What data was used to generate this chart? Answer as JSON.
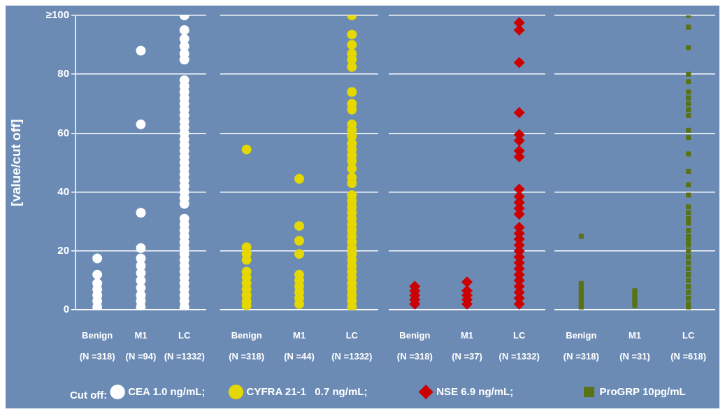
{
  "chart_data": [
    {
      "type": "scatter",
      "ylabel": "[value/cut off]",
      "legend_title": "Cut off:",
      "categories": [
        "Benign\n(N =318)",
        "M1\n(N =94)",
        "LC\n(N =1332)"
      ],
      "ylim": [
        0,
        100
      ],
      "yticks": [
        0,
        20,
        40,
        60,
        80,
        {
          "value": 100,
          "label": "≥100"
        }
      ],
      "grid": "y",
      "legend": "bottom",
      "series": [
        {
          "name": "CEA 1.0 ng/mL;",
          "color": "#ffffff",
          "marker": "circle",
          "x": [
            "Benign\n(N =318)",
            "Benign\n(N =318)",
            "Benign\n(N =318)",
            "Benign\n(N =318)",
            "Benign\n(N =318)",
            "Benign\n(N =318)",
            "Benign\n(N =318)",
            "M1\n(N =94)",
            "M1\n(N =94)",
            "M1\n(N =94)",
            "M1\n(N =94)",
            "M1\n(N =94)",
            "M1\n(N =94)",
            "M1\n(N =94)",
            "M1\n(N =94)",
            "M1\n(N =94)",
            "M1\n(N =94)",
            "M1\n(N =94)",
            "M1\n(N =94)",
            "LC\n(N =1332)",
            "LC\n(N =1332)",
            "LC\n(N =1332)",
            "LC\n(N =1332)",
            "LC\n(N =1332)",
            "LC\n(N =1332)",
            "LC\n(N =1332)",
            "LC\n(N =1332)",
            "LC\n(N =1332)",
            "LC\n(N =1332)",
            "LC\n(N =1332)",
            "LC\n(N =1332)",
            "LC\n(N =1332)",
            "LC\n(N =1332)",
            "LC\n(N =1332)",
            "LC\n(N =1332)",
            "LC\n(N =1332)",
            "LC\n(N =1332)",
            "LC\n(N =1332)",
            "LC\n(N =1332)",
            "LC\n(N =1332)",
            "LC\n(N =1332)",
            "LC\n(N =1332)",
            "LC\n(N =1332)",
            "LC\n(N =1332)",
            "LC\n(N =1332)",
            "LC\n(N =1332)",
            "LC\n(N =1332)",
            "LC\n(N =1332)",
            "LC\n(N =1332)",
            "LC\n(N =1332)",
            "LC\n(N =1332)",
            "LC\n(N =1332)",
            "LC\n(N =1332)",
            "LC\n(N =1332)",
            "LC\n(N =1332)",
            "LC\n(N =1332)",
            "LC\n(N =1332)",
            "LC\n(N =1332)",
            "LC\n(N =1332)",
            "LC\n(N =1332)",
            "LC\n(N =1332)",
            "LC\n(N =1332)",
            "LC\n(N =1332)"
          ],
          "values": [
            1,
            3,
            5,
            7,
            9,
            12,
            17.5,
            88,
            63,
            33,
            21,
            17.5,
            15,
            12.5,
            10,
            7.5,
            5,
            3,
            1,
            100,
            95,
            92,
            89.5,
            87,
            85,
            78,
            76,
            74,
            72,
            70,
            68,
            66,
            64,
            62,
            60,
            58,
            56,
            54,
            52,
            50,
            48,
            46,
            44,
            42,
            40,
            38,
            36,
            31,
            29,
            27,
            25,
            23,
            21,
            19,
            17,
            15,
            13,
            11,
            9,
            7,
            5,
            3,
            1
          ]
        }
      ]
    },
    {
      "type": "scatter",
      "categories": [
        "Benign\n(N =318)",
        "M1\n(N =44)",
        "LC\n(N =1332)"
      ],
      "ylim": [
        0,
        100
      ],
      "yticks": [
        0,
        20,
        40,
        60,
        80,
        100
      ],
      "grid": "y",
      "legend": "bottom",
      "tick_labels": "x",
      "series": [
        {
          "name": "CYFRA 21-1   0.7 ng/mL;",
          "color": "#e5d800",
          "marker": "circle",
          "x": [
            "Benign\n(N =318)",
            "Benign\n(N =318)",
            "Benign\n(N =318)",
            "Benign\n(N =318)",
            "Benign\n(N =318)",
            "Benign\n(N =318)",
            "Benign\n(N =318)",
            "Benign\n(N =318)",
            "Benign\n(N =318)",
            "Benign\n(N =318)",
            "Benign\n(N =318)",
            "M1\n(N =44)",
            "M1\n(N =44)",
            "M1\n(N =44)",
            "M1\n(N =44)",
            "M1\n(N =44)",
            "M1\n(N =44)",
            "M1\n(N =44)",
            "M1\n(N =44)",
            "M1\n(N =44)",
            "M1\n(N =44)",
            "LC\n(N =1332)",
            "LC\n(N =1332)",
            "LC\n(N =1332)",
            "LC\n(N =1332)",
            "LC\n(N =1332)",
            "LC\n(N =1332)",
            "LC\n(N =1332)",
            "LC\n(N =1332)",
            "LC\n(N =1332)",
            "LC\n(N =1332)",
            "LC\n(N =1332)",
            "LC\n(N =1332)",
            "LC\n(N =1332)",
            "LC\n(N =1332)",
            "LC\n(N =1332)",
            "LC\n(N =1332)",
            "LC\n(N =1332)",
            "LC\n(N =1332)",
            "LC\n(N =1332)",
            "LC\n(N =1332)",
            "LC\n(N =1332)",
            "LC\n(N =1332)",
            "LC\n(N =1332)",
            "LC\n(N =1332)",
            "LC\n(N =1332)",
            "LC\n(N =1332)",
            "LC\n(N =1332)",
            "LC\n(N =1332)",
            "LC\n(N =1332)",
            "LC\n(N =1332)",
            "LC\n(N =1332)",
            "LC\n(N =1332)",
            "LC\n(N =1332)",
            "LC\n(N =1332)",
            "LC\n(N =1332)",
            "LC\n(N =1332)",
            "LC\n(N =1332)",
            "LC\n(N =1332)",
            "LC\n(N =1332)"
          ],
          "values": [
            54.5,
            21.3,
            19,
            17,
            13,
            11,
            9,
            7,
            5,
            3,
            1.5,
            44.5,
            28.5,
            23.5,
            19,
            12,
            10,
            8,
            6,
            4,
            2,
            100,
            93.5,
            90,
            87,
            85,
            82.5,
            74,
            70,
            68,
            63,
            61,
            59,
            56.5,
            54.5,
            52.5,
            50.5,
            48,
            45,
            43,
            39,
            37,
            35,
            33,
            31,
            29,
            27,
            25,
            23,
            21,
            19,
            17,
            15,
            13,
            11,
            9,
            7,
            5,
            3,
            1
          ]
        }
      ]
    },
    {
      "type": "scatter",
      "categories": [
        "Benign\n(N =318)",
        "M1\n(N =37)",
        "LC\n(N =1332)"
      ],
      "ylim": [
        0,
        100
      ],
      "yticks": [
        0,
        20,
        40,
        60,
        80,
        100
      ],
      "grid": "y",
      "legend": "bottom",
      "tick_labels": "x",
      "series": [
        {
          "name": "NSE 6.9 ng/mL;",
          "color": "#cc0000",
          "marker": "diamond",
          "x": [
            "Benign\n(N =318)",
            "Benign\n(N =318)",
            "Benign\n(N =318)",
            "Benign\n(N =318)",
            "Benign\n(N =318)",
            "M1\n(N =37)",
            "M1\n(N =37)",
            "M1\n(N =37)",
            "M1\n(N =37)",
            "M1\n(N =37)",
            "LC\n(N =1332)",
            "LC\n(N =1332)",
            "LC\n(N =1332)",
            "LC\n(N =1332)",
            "LC\n(N =1332)",
            "LC\n(N =1332)",
            "LC\n(N =1332)",
            "LC\n(N =1332)",
            "LC\n(N =1332)",
            "LC\n(N =1332)",
            "LC\n(N =1332)",
            "LC\n(N =1332)",
            "LC\n(N =1332)",
            "LC\n(N =1332)",
            "LC\n(N =1332)",
            "LC\n(N =1332)",
            "LC\n(N =1332)",
            "LC\n(N =1332)",
            "LC\n(N =1332)",
            "LC\n(N =1332)",
            "LC\n(N =1332)",
            "LC\n(N =1332)",
            "LC\n(N =1332)",
            "LC\n(N =1332)",
            "LC\n(N =1332)",
            "LC\n(N =1332)",
            "LC\n(N =1332)"
          ],
          "values": [
            8,
            6.5,
            5,
            3.5,
            2,
            9.5,
            6.5,
            5,
            3.5,
            2,
            97.5,
            95,
            84,
            67,
            59.5,
            57.5,
            54,
            52,
            41,
            38.5,
            36.5,
            34.5,
            32.5,
            28,
            26,
            24,
            22,
            20,
            18,
            16,
            14,
            12,
            10,
            8,
            6,
            4,
            2
          ]
        }
      ]
    },
    {
      "type": "scatter",
      "categories": [
        "Benign\n(N =318)",
        "M1\n(N =31)",
        "LC\n(N =618)"
      ],
      "ylim": [
        0,
        100
      ],
      "yticks": [
        0,
        20,
        40,
        60,
        80,
        100
      ],
      "grid": "y",
      "legend": "bottom",
      "tick_labels": "x",
      "series": [
        {
          "name": "ProGRP 10pg/mL",
          "color": "#587214",
          "marker": "square",
          "x": [
            "Benign\n(N =318)",
            "Benign\n(N =318)",
            "Benign\n(N =318)",
            "Benign\n(N =318)",
            "Benign\n(N =318)",
            "Benign\n(N =318)",
            "Benign\n(N =318)",
            "Benign\n(N =318)",
            "Benign\n(N =318)",
            "Benign\n(N =318)",
            "M1\n(N =31)",
            "M1\n(N =31)",
            "M1\n(N =31)",
            "M1\n(N =31)",
            "M1\n(N =31)",
            "M1\n(N =31)",
            "LC\n(N =618)",
            "LC\n(N =618)",
            "LC\n(N =618)",
            "LC\n(N =618)",
            "LC\n(N =618)",
            "LC\n(N =618)",
            "LC\n(N =618)",
            "LC\n(N =618)",
            "LC\n(N =618)",
            "LC\n(N =618)",
            "LC\n(N =618)",
            "LC\n(N =618)",
            "LC\n(N =618)",
            "LC\n(N =618)",
            "LC\n(N =618)",
            "LC\n(N =618)",
            "LC\n(N =618)",
            "LC\n(N =618)",
            "LC\n(N =618)",
            "LC\n(N =618)",
            "LC\n(N =618)",
            "LC\n(N =618)",
            "LC\n(N =618)",
            "LC\n(N =618)",
            "LC\n(N =618)",
            "LC\n(N =618)",
            "LC\n(N =618)",
            "LC\n(N =618)",
            "LC\n(N =618)",
            "LC\n(N =618)",
            "LC\n(N =618)",
            "LC\n(N =618)",
            "LC\n(N =618)",
            "LC\n(N =618)",
            "LC\n(N =618)"
          ],
          "values": [
            25,
            9,
            8,
            7,
            6,
            5,
            4,
            3,
            2,
            1,
            6.5,
            5.5,
            4.5,
            3.5,
            2.5,
            1.5,
            100,
            96,
            89,
            80,
            77.5,
            74,
            72,
            70,
            68,
            66,
            61,
            58.5,
            53,
            47,
            42.5,
            39,
            35,
            33,
            31,
            29.5,
            27,
            25,
            23.5,
            22,
            20,
            18,
            16,
            14,
            12,
            10,
            8,
            6,
            4,
            2,
            1
          ]
        }
      ]
    }
  ]
}
